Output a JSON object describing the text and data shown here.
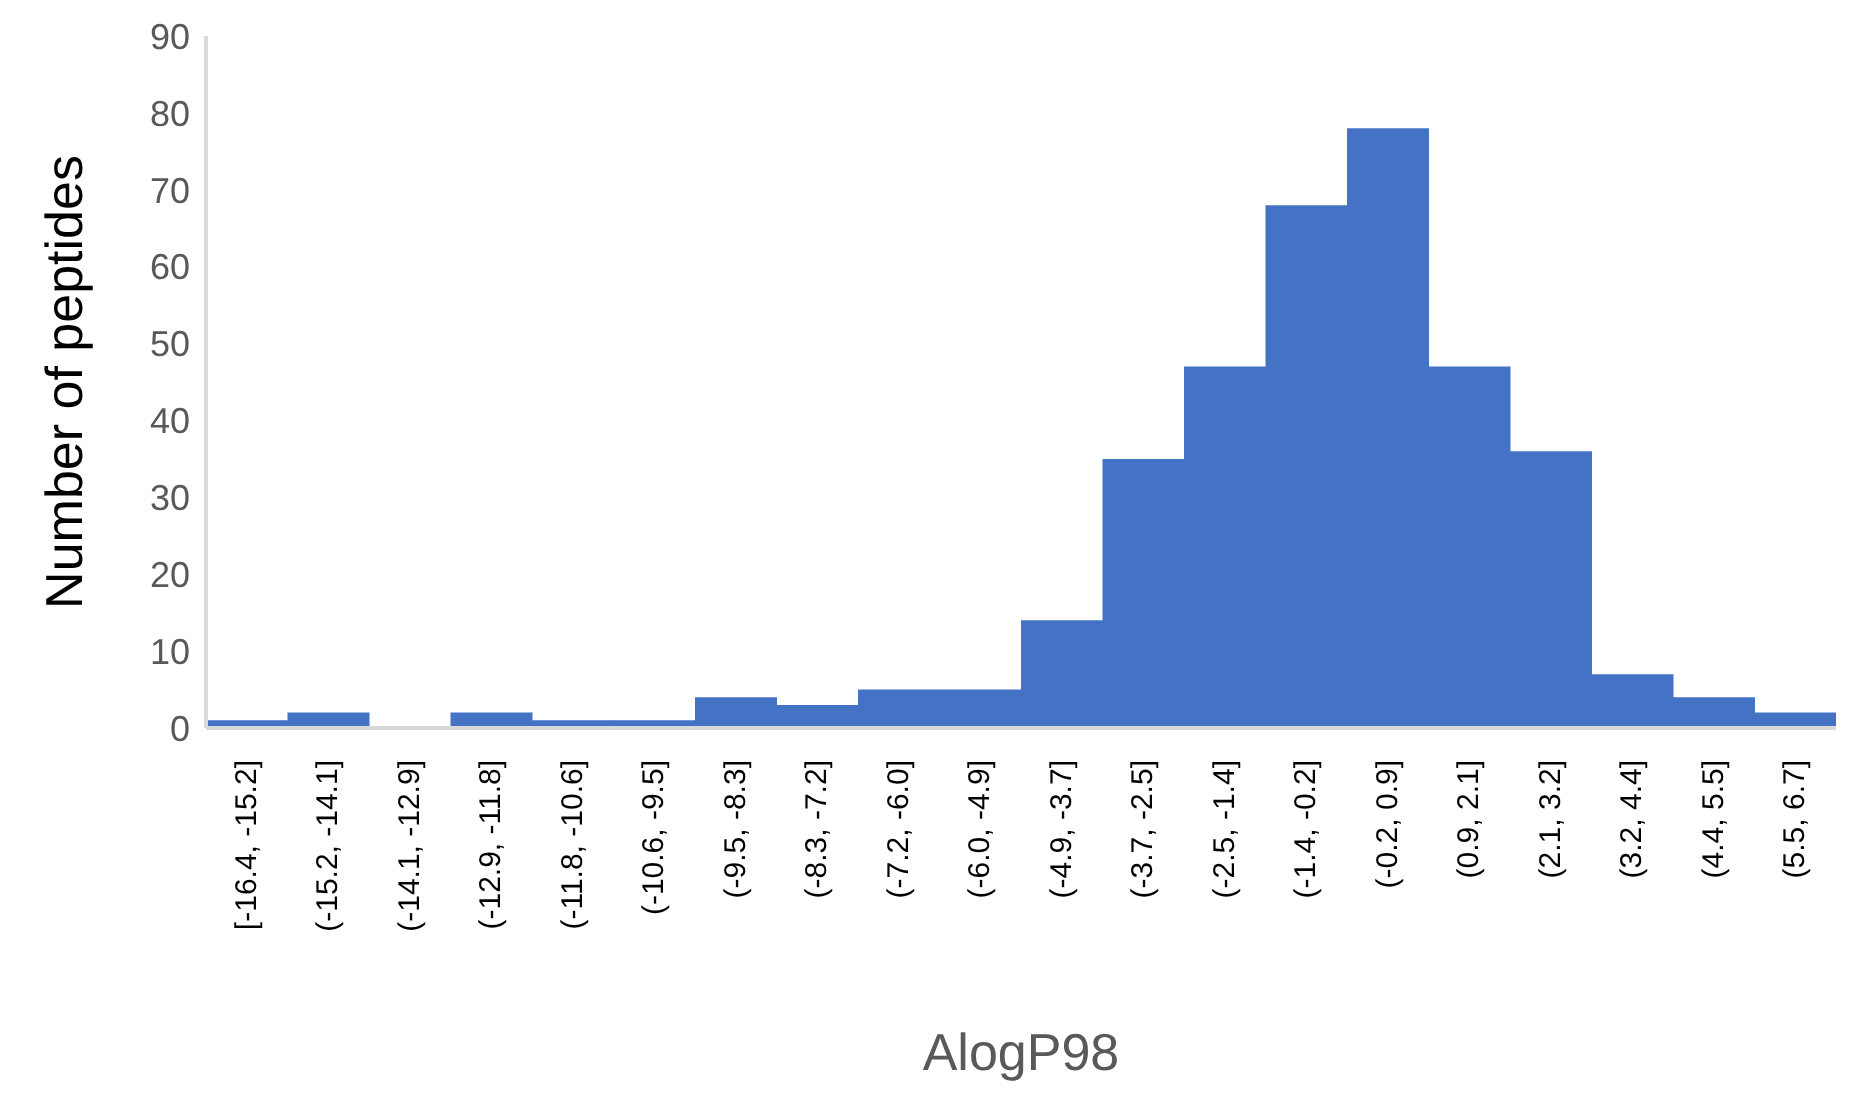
{
  "chart_data": {
    "type": "bar",
    "xlabel": "AlogP98",
    "ylabel": "Number of peptides",
    "categories": [
      "[-16.4, -15.2]",
      "(-15.2, -14.1]",
      "(-14.1, -12.9]",
      "(-12.9, -11.8]",
      "(-11.8, -10.6]",
      "(-10.6, -9.5]",
      "(-9.5, -8.3]",
      "(-8.3, -7.2]",
      "(-7.2, -6.0]",
      "(-6.0, -4.9]",
      "(-4.9, -3.7]",
      "(-3.7, -2.5]",
      "(-2.5, -1.4]",
      "(-1.4, -0.2]",
      "(-0.2, 0.9]",
      "(0.9, 2.1]",
      "(2.1, 3.2]",
      "(3.2, 4.4]",
      "(4.4, 5.5]",
      "(5.5, 6.7]"
    ],
    "values": [
      1,
      2,
      0,
      2,
      1,
      1,
      4,
      3,
      5,
      5,
      14,
      35,
      47,
      68,
      78,
      47,
      36,
      7,
      4,
      2
    ],
    "color": "#4472c4",
    "ylim": [
      0,
      90
    ],
    "yticks": [
      0,
      10,
      20,
      30,
      40,
      50,
      60,
      70,
      80,
      90
    ],
    "grid": false,
    "legend": false
  }
}
